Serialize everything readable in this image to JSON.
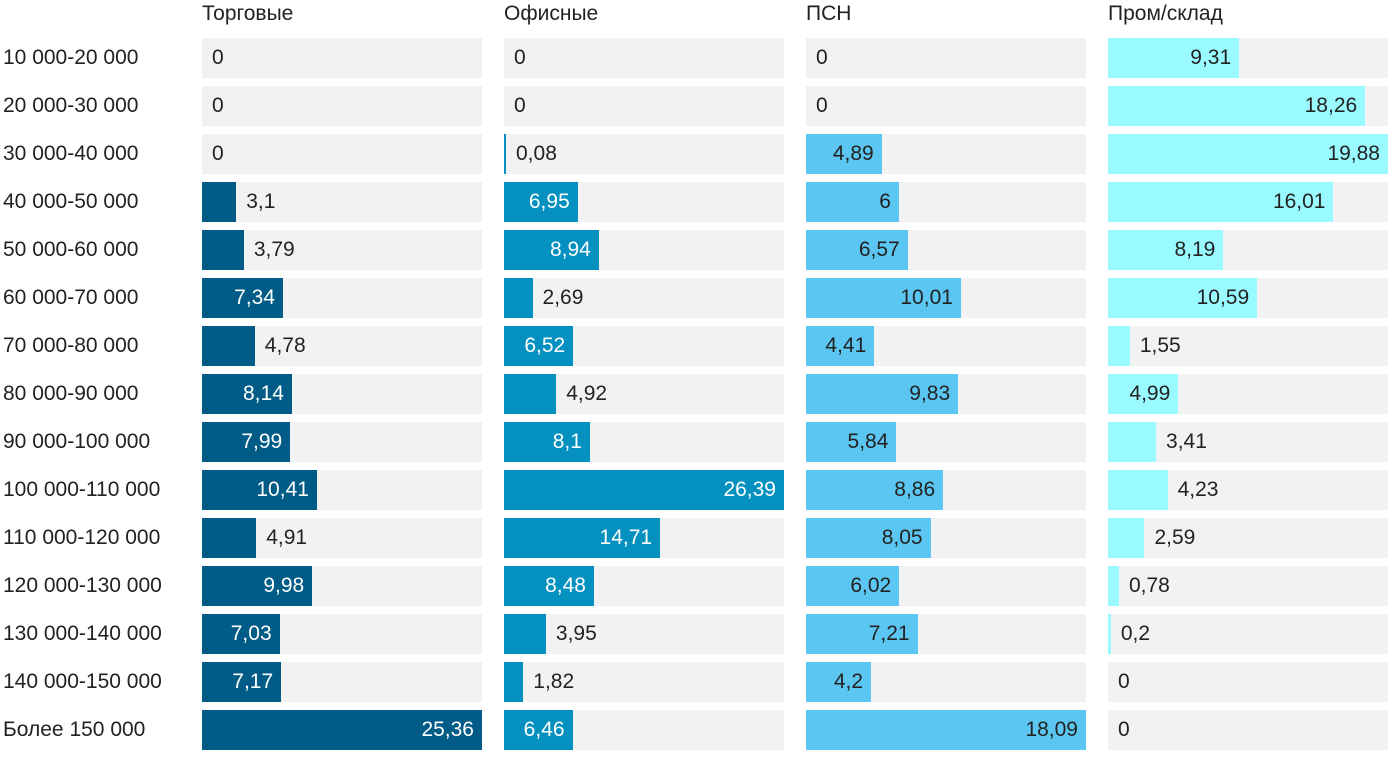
{
  "chart_data": {
    "type": "bar",
    "orientation": "horizontal",
    "categories": [
      "10 000-20 000",
      "20 000-30 000",
      "30 000-40 000",
      "40 000-50 000",
      "50 000-60 000",
      "60 000-70 000",
      "70 000-80 000",
      "80 000-90 000",
      "90 000-100 000",
      "100 000-110 000",
      "110 000-120 000",
      "120 000-130 000",
      "130 000-140 000",
      "140 000-150 000",
      "Более 150 000"
    ],
    "series": [
      {
        "name": "Торговые",
        "color": "#005c87",
        "values": [
          0,
          0,
          0,
          3.1,
          3.79,
          7.34,
          4.78,
          8.14,
          7.99,
          10.41,
          4.91,
          9.98,
          7.03,
          7.17,
          25.36
        ],
        "labels": [
          "0",
          "0",
          "0",
          "3,1",
          "3,79",
          "7,34",
          "4,78",
          "8,14",
          "7,99",
          "10,41",
          "4,91",
          "9,98",
          "7,03",
          "7,17",
          "25,36"
        ]
      },
      {
        "name": "Офисные",
        "color": "#0591c0",
        "values": [
          0,
          0,
          0.08,
          6.95,
          8.94,
          2.69,
          6.52,
          4.92,
          8.1,
          26.39,
          14.71,
          8.48,
          3.95,
          1.82,
          6.46
        ],
        "labels": [
          "0",
          "0",
          "0,08",
          "6,95",
          "8,94",
          "2,69",
          "6,52",
          "4,92",
          "8,1",
          "26,39",
          "14,71",
          "8,48",
          "3,95",
          "1,82",
          "6,46"
        ]
      },
      {
        "name": "ПСН",
        "color": "#5cc6f2",
        "values": [
          0,
          0,
          4.89,
          6,
          6.57,
          10.01,
          4.41,
          9.83,
          5.84,
          8.86,
          8.05,
          6.02,
          7.21,
          4.2,
          18.09
        ],
        "labels": [
          "0",
          "0",
          "4,89",
          "6",
          "6,57",
          "10,01",
          "4,41",
          "9,83",
          "5,84",
          "8,86",
          "8,05",
          "6,02",
          "7,21",
          "4,2",
          "18,09"
        ]
      },
      {
        "name": "Пром/склад",
        "color": "#99faff",
        "values": [
          9.31,
          18.26,
          19.88,
          16.01,
          8.19,
          10.59,
          1.55,
          4.99,
          3.41,
          4.23,
          2.59,
          0.78,
          0.2,
          0,
          0
        ],
        "labels": [
          "9,31",
          "18,26",
          "19,88",
          "16,01",
          "8,19",
          "10,59",
          "1,55",
          "4,99",
          "3,41",
          "4,23",
          "2,59",
          "0,78",
          "0,2",
          "0",
          "0"
        ]
      }
    ],
    "track_color": "#f2f2f2"
  }
}
